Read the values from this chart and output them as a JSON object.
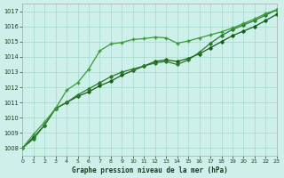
{
  "title": "Graphe pression niveau de la mer (hPa)",
  "background_color": "#cdf0ea",
  "grid_color": "#aaddcc",
  "line_color_dark": "#2d6a2d",
  "xlim": [
    0,
    23
  ],
  "ylim": [
    1007.5,
    1017.5
  ],
  "yticks": [
    1008,
    1009,
    1010,
    1011,
    1012,
    1013,
    1014,
    1015,
    1016,
    1017
  ],
  "xticks": [
    0,
    1,
    2,
    3,
    4,
    5,
    6,
    7,
    8,
    9,
    10,
    11,
    12,
    13,
    14,
    15,
    16,
    17,
    18,
    19,
    20,
    21,
    22,
    23
  ],
  "series": [
    {
      "x": [
        0,
        1,
        2,
        3,
        4,
        5,
        6,
        7,
        8,
        9,
        10,
        11,
        12,
        13,
        14,
        15,
        16,
        17,
        18,
        19,
        20,
        21,
        22,
        23
      ],
      "y": [
        1008.0,
        1008.7,
        1009.5,
        1010.6,
        1011.0,
        1011.4,
        1011.7,
        1012.1,
        1012.4,
        1012.8,
        1013.1,
        1013.4,
        1013.7,
        1013.8,
        1013.7,
        1013.9,
        1014.2,
        1014.6,
        1015.0,
        1015.4,
        1015.7,
        1016.0,
        1016.4,
        1016.8
      ],
      "color": "#1a5c1a",
      "lw": 0.9,
      "marker": "D",
      "ms": 1.8
    },
    {
      "x": [
        0,
        1,
        2,
        3,
        4,
        5,
        6,
        7,
        8,
        9,
        10,
        11,
        12,
        13,
        14,
        15,
        16,
        17,
        18,
        19,
        20,
        21,
        22,
        23
      ],
      "y": [
        1008.0,
        1008.6,
        1009.5,
        1010.6,
        1011.0,
        1011.5,
        1011.9,
        1012.3,
        1012.7,
        1013.0,
        1013.2,
        1013.4,
        1013.6,
        1013.7,
        1013.5,
        1013.8,
        1014.3,
        1014.9,
        1015.4,
        1015.8,
        1016.1,
        1016.4,
        1016.75,
        1017.1
      ],
      "color": "#2a7a2a",
      "lw": 0.9,
      "marker": "D",
      "ms": 1.8
    },
    {
      "x": [
        0,
        1,
        2,
        3,
        4,
        5,
        6,
        7,
        8,
        9,
        10,
        11,
        12,
        13,
        14,
        15,
        16,
        17,
        18,
        19,
        20,
        21,
        22,
        23
      ],
      "y": [
        1008.0,
        1008.9,
        1009.7,
        1010.6,
        1011.8,
        1012.3,
        1013.2,
        1014.4,
        1014.85,
        1014.95,
        1015.15,
        1015.2,
        1015.3,
        1015.25,
        1014.9,
        1015.05,
        1015.25,
        1015.45,
        1015.65,
        1015.9,
        1016.2,
        1016.5,
        1016.85,
        1017.1
      ],
      "color": "#3a9a3a",
      "lw": 0.9,
      "marker": "+",
      "ms": 3.5
    }
  ]
}
